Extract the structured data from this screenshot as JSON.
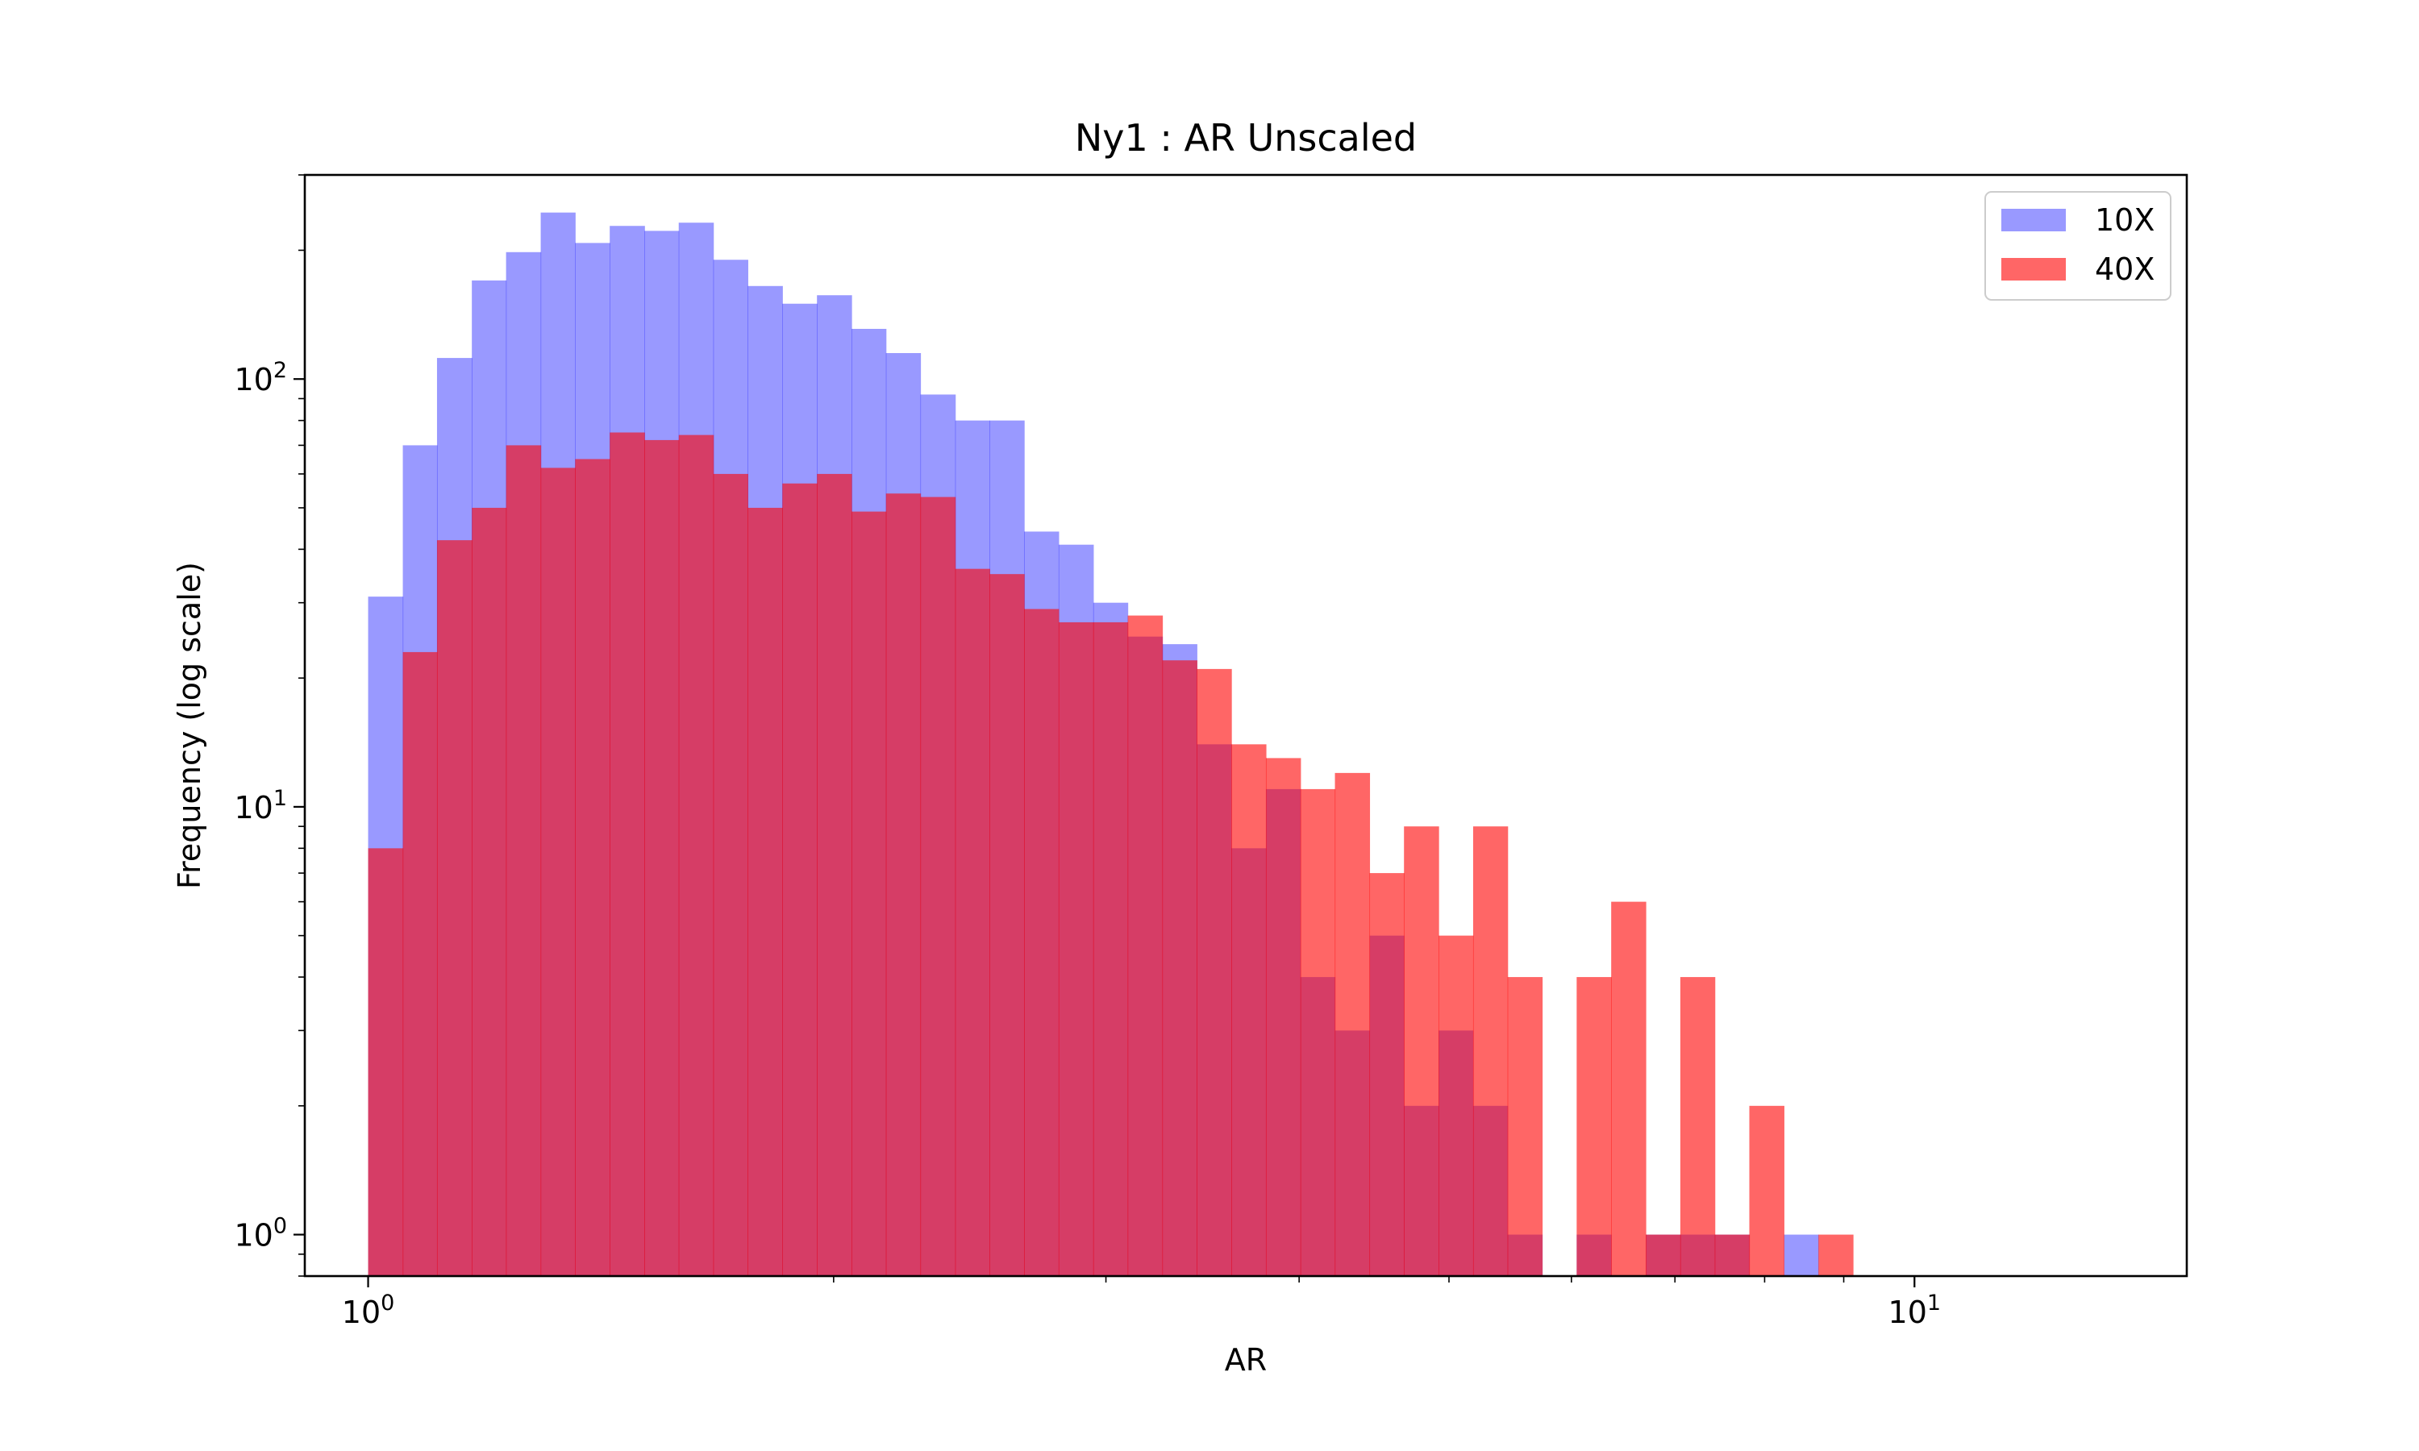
{
  "chart_data": {
    "type": "histogram",
    "title": "Ny1 : AR Unscaled",
    "xlabel": "AR",
    "ylabel": "Frequency (log scale)",
    "xscale": "log",
    "yscale": "log",
    "xlim": [
      0.91,
      15.0
    ],
    "ylim": [
      0.8,
      300
    ],
    "x_ticks": [
      {
        "value": 1,
        "base": "10",
        "exp": "0"
      },
      {
        "value": 10,
        "base": "10",
        "exp": "1"
      }
    ],
    "y_ticks": [
      {
        "value": 1,
        "base": "10",
        "exp": "0"
      },
      {
        "value": 10,
        "base": "10",
        "exp": "1"
      },
      {
        "value": 100,
        "base": "10",
        "exp": "2"
      }
    ],
    "bin_edges": [
      1.0,
      1.053,
      1.108,
      1.167,
      1.228,
      1.293,
      1.361,
      1.433,
      1.509,
      1.588,
      1.672,
      1.76,
      1.853,
      1.951,
      2.054,
      2.162,
      2.276,
      2.397,
      2.523,
      2.656,
      2.796,
      2.944,
      3.099,
      3.263,
      3.435,
      3.616,
      3.807,
      4.008,
      4.219,
      4.442,
      4.676,
      4.923,
      5.183,
      5.456,
      5.744,
      6.047,
      6.366,
      6.702,
      7.056,
      7.428,
      7.82,
      8.233,
      8.667,
      9.125
    ],
    "series": [
      {
        "name": "10X",
        "color": "#0000ff",
        "alpha": 0.4,
        "values": [
          31,
          70,
          112,
          170,
          198,
          245,
          208,
          228,
          222,
          232,
          190,
          165,
          150,
          157,
          131,
          115,
          92,
          80,
          80,
          44,
          41,
          30,
          25,
          24,
          14,
          8,
          11,
          4,
          3,
          5,
          2,
          3,
          2,
          1,
          0,
          1,
          0,
          1,
          1,
          1,
          0,
          1,
          0
        ]
      },
      {
        "name": "40X",
        "color": "#ff0000",
        "alpha": 0.6,
        "values": [
          8,
          23,
          42,
          50,
          70,
          62,
          65,
          75,
          72,
          74,
          60,
          50,
          57,
          60,
          49,
          54,
          53,
          36,
          35,
          29,
          27,
          27,
          28,
          22,
          21,
          14,
          13,
          11,
          12,
          7,
          9,
          5,
          9,
          4,
          0,
          4,
          6,
          1,
          4,
          1,
          2,
          0,
          1
        ]
      }
    ],
    "legend": {
      "position": "upper-right",
      "entries": [
        "10X",
        "40X"
      ]
    },
    "grid": false
  }
}
